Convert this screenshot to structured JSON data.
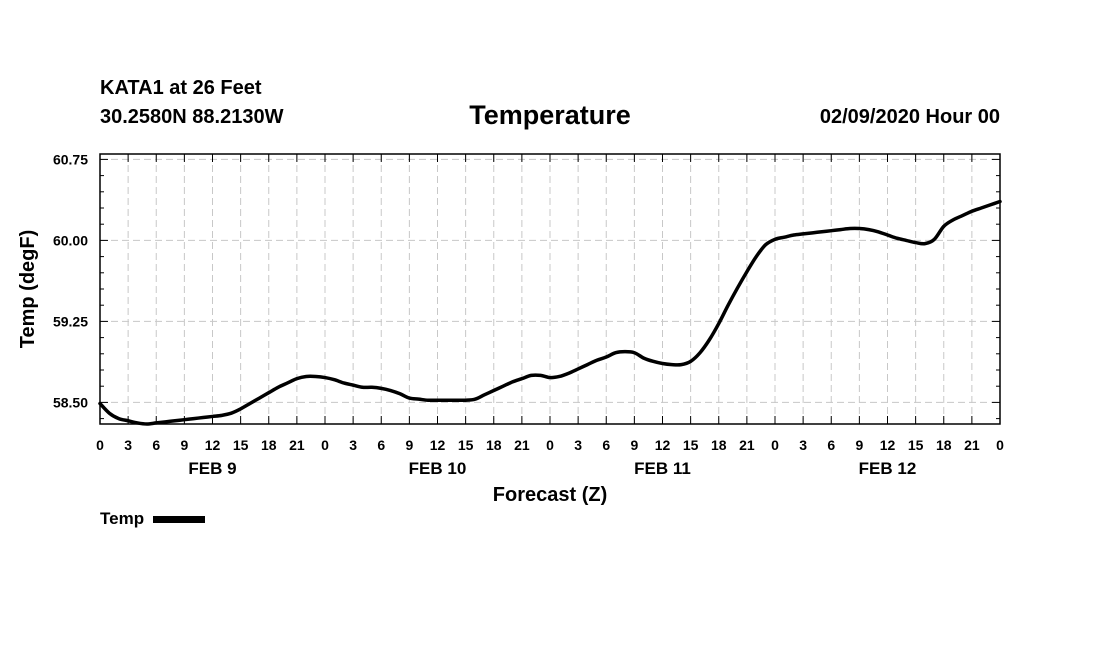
{
  "header": {
    "station": "KATA1 at 26 Feet",
    "coords": "30.2580N 88.2130W",
    "title": "Temperature",
    "datetime": "02/09/2020 Hour 00"
  },
  "legend": {
    "label": "Temp",
    "color": "#000000"
  },
  "chart_data": {
    "type": "line",
    "title": "Temperature",
    "xlabel": "Forecast (Z)",
    "ylabel": "Temp (degF)",
    "xlim": [
      0,
      96
    ],
    "ylim": [
      58.3,
      60.8
    ],
    "yticks": [
      "58.50",
      "59.25",
      "60.00",
      "60.75"
    ],
    "ytick_values": [
      58.5,
      59.25,
      60.0,
      60.75
    ],
    "xtick_labels": [
      "0",
      "3",
      "6",
      "9",
      "12",
      "15",
      "18",
      "21",
      "0",
      "3",
      "6",
      "9",
      "12",
      "15",
      "18",
      "21",
      "0",
      "3",
      "6",
      "9",
      "12",
      "15",
      "18",
      "21",
      "0",
      "3",
      "6",
      "9",
      "12",
      "15",
      "18",
      "21",
      "0"
    ],
    "day_labels": [
      {
        "label": "FEB 9",
        "hour": 12
      },
      {
        "label": "FEB 10",
        "hour": 36
      },
      {
        "label": "FEB 11",
        "hour": 60
      },
      {
        "label": "FEB 12",
        "hour": 84
      }
    ],
    "grid": true,
    "series": [
      {
        "name": "Temp",
        "x": [
          0,
          1,
          2,
          3,
          4,
          5,
          6,
          7,
          8,
          9,
          10,
          11,
          12,
          13,
          14,
          15,
          16,
          17,
          18,
          19,
          20,
          21,
          22,
          23,
          24,
          25,
          26,
          27,
          28,
          29,
          30,
          31,
          32,
          33,
          34,
          35,
          36,
          37,
          38,
          39,
          40,
          41,
          42,
          43,
          44,
          45,
          46,
          47,
          48,
          49,
          50,
          51,
          52,
          53,
          54,
          55,
          56,
          57,
          58,
          59,
          60,
          61,
          62,
          63,
          64,
          65,
          66,
          67,
          68,
          69,
          70,
          71,
          72,
          73,
          74,
          75,
          76,
          77,
          78,
          79,
          80,
          81,
          82,
          83,
          84,
          85,
          86,
          87,
          88,
          89,
          90,
          91,
          92,
          93,
          94,
          95,
          96
        ],
        "values": [
          58.49,
          58.4,
          58.35,
          58.33,
          58.31,
          58.3,
          58.31,
          58.32,
          58.33,
          58.34,
          58.35,
          58.36,
          58.37,
          58.38,
          58.4,
          58.44,
          58.49,
          58.54,
          58.59,
          58.64,
          58.68,
          58.72,
          58.74,
          58.74,
          58.73,
          58.71,
          58.68,
          58.66,
          58.64,
          58.64,
          58.63,
          58.61,
          58.58,
          58.54,
          58.53,
          58.52,
          58.52,
          58.52,
          58.52,
          58.52,
          58.53,
          58.57,
          58.61,
          58.65,
          58.69,
          58.72,
          58.75,
          58.75,
          58.73,
          58.74,
          58.77,
          58.81,
          58.85,
          58.89,
          58.92,
          58.96,
          58.97,
          58.96,
          58.91,
          58.88,
          58.86,
          58.85,
          58.85,
          58.88,
          58.96,
          59.08,
          59.23,
          59.4,
          59.56,
          59.71,
          59.85,
          59.96,
          60.01,
          60.03,
          60.05,
          60.06,
          60.07,
          60.08,
          60.09,
          60.1,
          60.11,
          60.11,
          60.1,
          60.08,
          60.05,
          60.02,
          60.0,
          59.98,
          59.97,
          60.01,
          60.13,
          60.19,
          60.23,
          60.27,
          60.3,
          60.33,
          60.36
        ]
      }
    ]
  }
}
